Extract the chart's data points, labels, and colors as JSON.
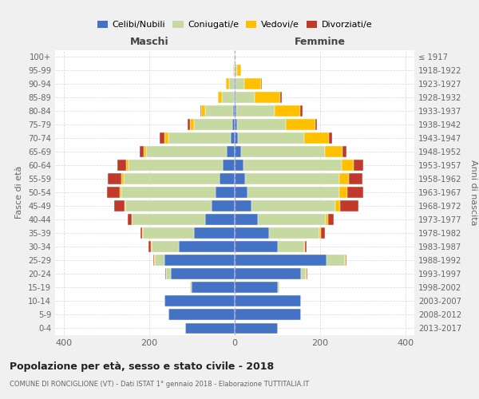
{
  "age_groups": [
    "0-4",
    "5-9",
    "10-14",
    "15-19",
    "20-24",
    "25-29",
    "30-34",
    "35-39",
    "40-44",
    "45-49",
    "50-54",
    "55-59",
    "60-64",
    "65-69",
    "70-74",
    "75-79",
    "80-84",
    "85-89",
    "90-94",
    "95-99",
    "100+"
  ],
  "birth_years": [
    "2013-2017",
    "2008-2012",
    "2003-2007",
    "1998-2002",
    "1993-1997",
    "1988-1992",
    "1983-1987",
    "1978-1982",
    "1973-1977",
    "1968-1972",
    "1963-1967",
    "1958-1962",
    "1953-1957",
    "1948-1952",
    "1943-1947",
    "1938-1942",
    "1933-1937",
    "1928-1932",
    "1923-1927",
    "1918-1922",
    "≤ 1917"
  ],
  "males_celibe": [
    115,
    155,
    165,
    100,
    150,
    165,
    130,
    95,
    70,
    55,
    45,
    35,
    28,
    18,
    10,
    5,
    4,
    2,
    1,
    0,
    1
  ],
  "males_coniugato": [
    0,
    0,
    0,
    5,
    10,
    22,
    65,
    120,
    170,
    200,
    220,
    225,
    220,
    190,
    145,
    90,
    65,
    28,
    12,
    2,
    0
  ],
  "males_vedovo": [
    0,
    0,
    0,
    0,
    1,
    1,
    1,
    1,
    1,
    2,
    3,
    5,
    5,
    5,
    10,
    10,
    10,
    10,
    8,
    2,
    0
  ],
  "males_divorziato": [
    0,
    0,
    0,
    0,
    1,
    2,
    5,
    5,
    10,
    25,
    30,
    32,
    22,
    10,
    10,
    5,
    2,
    0,
    0,
    0,
    0
  ],
  "females_nubile": [
    100,
    155,
    155,
    100,
    155,
    215,
    100,
    80,
    55,
    40,
    30,
    25,
    20,
    15,
    8,
    5,
    3,
    2,
    1,
    0,
    0
  ],
  "females_coniugata": [
    0,
    0,
    0,
    5,
    12,
    42,
    62,
    118,
    158,
    195,
    215,
    220,
    230,
    195,
    155,
    115,
    90,
    45,
    22,
    5,
    0
  ],
  "females_vedova": [
    0,
    0,
    0,
    0,
    1,
    2,
    2,
    4,
    6,
    12,
    18,
    22,
    28,
    42,
    58,
    68,
    60,
    60,
    38,
    10,
    0
  ],
  "females_divorziata": [
    0,
    0,
    0,
    0,
    1,
    2,
    4,
    8,
    12,
    42,
    38,
    32,
    22,
    10,
    6,
    5,
    5,
    3,
    2,
    0,
    0
  ],
  "color_celibe": "#4472c4",
  "color_coniugato": "#c5d9a0",
  "color_vedovo": "#ffc000",
  "color_divorziato": "#c0392b",
  "title": "Popolazione per età, sesso e stato civile - 2018",
  "subtitle": "COMUNE DI RONCIGLIONE (VT) - Dati ISTAT 1° gennaio 2018 - Elaborazione TUTTITALIA.IT",
  "label_maschi": "Maschi",
  "label_femmine": "Femmine",
  "ylabel_left": "Fasce di età",
  "ylabel_right": "Anni di nascita",
  "xlim": 420,
  "bg_color": "#f0f0f0",
  "plot_bg": "#ffffff",
  "legend_labels": [
    "Celibi/Nubili",
    "Coniugati/e",
    "Vedovi/e",
    "Divorziati/e"
  ]
}
